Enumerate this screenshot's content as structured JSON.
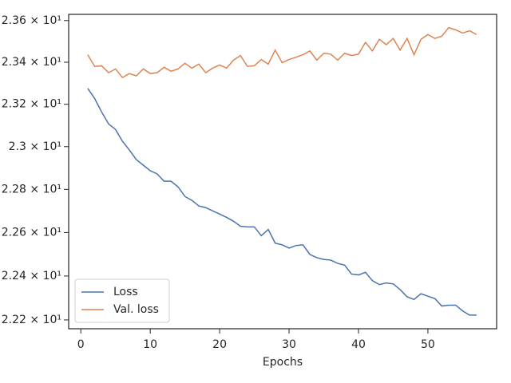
{
  "chart_data": {
    "type": "line",
    "x_label": "Epochs",
    "log_y": true,
    "legend": "lower left",
    "x": [
      1,
      2,
      3,
      4,
      5,
      6,
      7,
      8,
      9,
      10,
      11,
      12,
      13,
      14,
      15,
      16,
      17,
      18,
      19,
      20,
      21,
      22,
      23,
      24,
      25,
      26,
      27,
      28,
      29,
      30,
      31,
      32,
      33,
      34,
      35,
      36,
      37,
      38,
      39,
      40,
      41,
      42,
      43,
      44,
      45,
      46,
      47,
      48,
      49,
      50,
      51,
      52,
      53,
      54,
      55,
      56,
      57
    ],
    "series": [
      {
        "name": "Loss",
        "color": "#4c72b0",
        "values": [
          23.275,
          23.227,
          23.163,
          23.107,
          23.081,
          23.025,
          22.984,
          22.939,
          22.913,
          22.887,
          22.872,
          22.838,
          22.838,
          22.812,
          22.767,
          22.749,
          22.723,
          22.715,
          22.7,
          22.685,
          22.67,
          22.652,
          22.629,
          22.626,
          22.626,
          22.585,
          22.614,
          22.551,
          22.543,
          22.528,
          22.54,
          22.543,
          22.499,
          22.484,
          22.476,
          22.473,
          22.458,
          22.45,
          22.409,
          22.405,
          22.417,
          22.379,
          22.361,
          22.368,
          22.364,
          22.338,
          22.305,
          22.293,
          22.319,
          22.308,
          22.297,
          22.263,
          22.267,
          22.267,
          22.241,
          22.222,
          22.222
        ]
      },
      {
        "name": "Val. loss",
        "color": "#dd8452",
        "values": [
          23.436,
          23.38,
          23.383,
          23.35,
          23.368,
          23.327,
          23.346,
          23.335,
          23.368,
          23.346,
          23.35,
          23.376,
          23.357,
          23.368,
          23.395,
          23.372,
          23.391,
          23.35,
          23.372,
          23.387,
          23.372,
          23.41,
          23.432,
          23.38,
          23.383,
          23.413,
          23.391,
          23.458,
          23.398,
          23.413,
          23.424,
          23.436,
          23.454,
          23.41,
          23.443,
          23.439,
          23.41,
          23.443,
          23.432,
          23.439,
          23.495,
          23.454,
          23.51,
          23.484,
          23.514,
          23.458,
          23.514,
          23.436,
          23.51,
          23.533,
          23.514,
          23.525,
          23.566,
          23.555,
          23.54,
          23.551,
          23.533
        ]
      }
    ],
    "xlim": [
      -1.75,
      59.9
    ],
    "xticks": [
      0,
      10,
      20,
      30,
      40,
      50
    ],
    "ylim": [
      22.16,
      23.63
    ],
    "yticks": [
      {
        "value": 22.2,
        "label": "2.22 × 10¹"
      },
      {
        "value": 22.4,
        "label": "2.24 × 10¹"
      },
      {
        "value": 22.6,
        "label": "2.26 × 10¹"
      },
      {
        "value": 22.8,
        "label": "2.28 × 10¹"
      },
      {
        "value": 23.0,
        "label": "2.3 × 10¹"
      },
      {
        "value": 23.2,
        "label": "2.32 × 10¹"
      },
      {
        "value": 23.4,
        "label": "2.34 × 10¹"
      },
      {
        "value": 23.6,
        "label": "2.36 × 10¹"
      }
    ]
  }
}
